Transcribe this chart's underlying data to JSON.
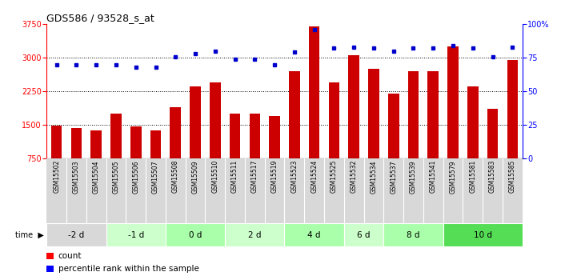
{
  "title": "GDS586 / 93528_s_at",
  "samples": [
    "GSM15502",
    "GSM15503",
    "GSM15504",
    "GSM15505",
    "GSM15506",
    "GSM15507",
    "GSM15508",
    "GSM15509",
    "GSM15510",
    "GSM15511",
    "GSM15517",
    "GSM15519",
    "GSM15523",
    "GSM15524",
    "GSM15525",
    "GSM15532",
    "GSM15534",
    "GSM15537",
    "GSM15539",
    "GSM15541",
    "GSM15579",
    "GSM15581",
    "GSM15583",
    "GSM15585"
  ],
  "counts": [
    1480,
    1420,
    1380,
    1750,
    1460,
    1380,
    1900,
    2350,
    2450,
    1750,
    1750,
    1700,
    2700,
    3700,
    2450,
    3050,
    2750,
    2200,
    2700,
    2700,
    3250,
    2350,
    1850,
    2950
  ],
  "percentile_ranks": [
    70,
    70,
    70,
    70,
    68,
    68,
    76,
    78,
    80,
    74,
    74,
    70,
    79,
    96,
    82,
    83,
    82,
    80,
    82,
    82,
    84,
    82,
    76,
    83
  ],
  "time_groups": [
    {
      "label": "-2 d",
      "count": 3,
      "color": "#d8d8d8"
    },
    {
      "label": "-1 d",
      "count": 3,
      "color": "#ccffcc"
    },
    {
      "label": "0 d",
      "count": 3,
      "color": "#aaffaa"
    },
    {
      "label": "2 d",
      "count": 3,
      "color": "#ccffcc"
    },
    {
      "label": "4 d",
      "count": 3,
      "color": "#aaffaa"
    },
    {
      "label": "6 d",
      "count": 2,
      "color": "#ccffcc"
    },
    {
      "label": "8 d",
      "count": 3,
      "color": "#aaffaa"
    },
    {
      "label": "10 d",
      "count": 4,
      "color": "#55dd55"
    }
  ],
  "bar_color": "#cc0000",
  "dot_color": "#0000cc",
  "ylim_left": [
    750,
    3750
  ],
  "ylim_right": [
    0,
    100
  ],
  "yticks_left": [
    750,
    1500,
    2250,
    3000,
    3750
  ],
  "yticks_right": [
    0,
    25,
    50,
    75,
    100
  ],
  "grid_values": [
    1500,
    2250,
    3000
  ],
  "bar_width": 0.55,
  "background_color": "#ffffff",
  "label_count": "count",
  "label_percentile": "percentile rank within the sample",
  "col_bg": "#d8d8d8"
}
